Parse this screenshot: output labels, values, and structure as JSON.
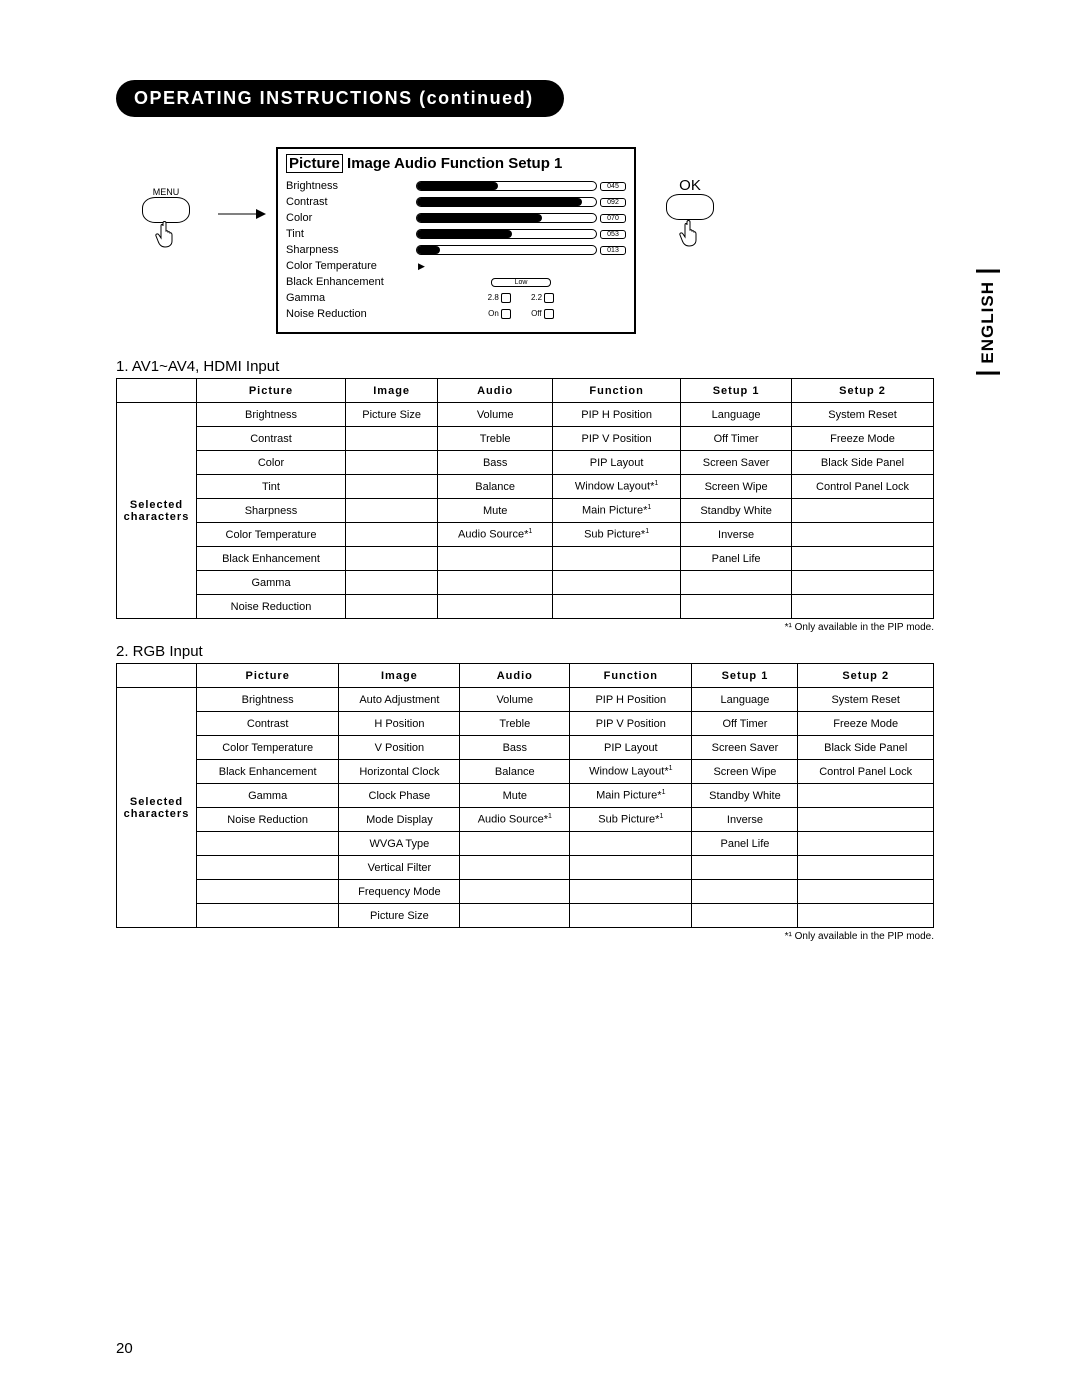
{
  "header": "OPERATING INSTRUCTIONS (continued)",
  "language_tab": "ENGLISH",
  "menu_label": "MENU",
  "ok_label": "OK",
  "page_number": "20",
  "osd": {
    "tabs": [
      "Picture",
      "Image",
      "Audio",
      "Function",
      "Setup 1"
    ],
    "selected_tab": "Picture",
    "sliders": [
      {
        "label": "Brightness",
        "value": "045",
        "pct": 45
      },
      {
        "label": "Contrast",
        "value": "092",
        "pct": 92
      },
      {
        "label": "Color",
        "value": "070",
        "pct": 70
      },
      {
        "label": "Tint",
        "value": "053",
        "pct": 53
      },
      {
        "label": "Sharpness",
        "value": "013",
        "pct": 13
      }
    ],
    "color_temperature_label": "Color Temperature",
    "black_enh_label": "Black Enhancement",
    "black_enh_value": "Low",
    "gamma_label": "Gamma",
    "gamma_opts": [
      "2.8",
      "2.2"
    ],
    "noise_red_label": "Noise Reduction",
    "noise_red_opts": [
      "On",
      "Off"
    ]
  },
  "section1": {
    "title": "1. AV1~AV4, HDMI Input",
    "columns": [
      "Picture",
      "Image",
      "Audio",
      "Function",
      "Setup 1",
      "Setup 2"
    ],
    "rowhead": "Selected characters",
    "rows": [
      [
        "Brightness",
        "Picture Size",
        "Volume",
        "PIP H Position",
        "Language",
        "System Reset"
      ],
      [
        "Contrast",
        "",
        "Treble",
        "PIP V Position",
        "Off Timer",
        "Freeze Mode"
      ],
      [
        "Color",
        "",
        "Bass",
        "PIP Layout",
        "Screen Saver",
        "Black Side Panel"
      ],
      [
        "Tint",
        "",
        "Balance",
        "Window Layout*¹",
        "Screen Wipe",
        "Control Panel Lock"
      ],
      [
        "Sharpness",
        "",
        "Mute",
        "Main Picture*¹",
        "Standby White",
        ""
      ],
      [
        "Color Temperature",
        "",
        "Audio Source*¹",
        "Sub Picture*¹",
        "Inverse",
        ""
      ],
      [
        "Black Enhancement",
        "",
        "",
        "",
        "Panel Life",
        ""
      ],
      [
        "Gamma",
        "",
        "",
        "",
        "",
        ""
      ],
      [
        "Noise Reduction",
        "",
        "",
        "",
        "",
        ""
      ]
    ],
    "footnote": "*¹ Only available in the PIP mode."
  },
  "section2": {
    "title": "2. RGB Input",
    "columns": [
      "Picture",
      "Image",
      "Audio",
      "Function",
      "Setup 1",
      "Setup 2"
    ],
    "rowhead": "Selected characters",
    "rows": [
      [
        "Brightness",
        "Auto Adjustment",
        "Volume",
        "PIP H Position",
        "Language",
        "System Reset"
      ],
      [
        "Contrast",
        "H Position",
        "Treble",
        "PIP V Position",
        "Off Timer",
        "Freeze Mode"
      ],
      [
        "Color Temperature",
        "V Position",
        "Bass",
        "PIP Layout",
        "Screen Saver",
        "Black Side Panel"
      ],
      [
        "Black Enhancement",
        "Horizontal Clock",
        "Balance",
        "Window Layout*¹",
        "Screen Wipe",
        "Control Panel Lock"
      ],
      [
        "Gamma",
        "Clock Phase",
        "Mute",
        "Main Picture*¹",
        "Standby White",
        ""
      ],
      [
        "Noise Reduction",
        "Mode Display",
        "Audio Source*¹",
        "Sub Picture*¹",
        "Inverse",
        ""
      ],
      [
        "",
        "WVGA Type",
        "",
        "",
        "Panel Life",
        ""
      ],
      [
        "",
        "Vertical Filter",
        "",
        "",
        "",
        ""
      ],
      [
        "",
        "Frequency Mode",
        "",
        "",
        "",
        ""
      ],
      [
        "",
        "Picture Size",
        "",
        "",
        "",
        ""
      ]
    ],
    "footnote": "*¹ Only available in the PIP mode."
  }
}
